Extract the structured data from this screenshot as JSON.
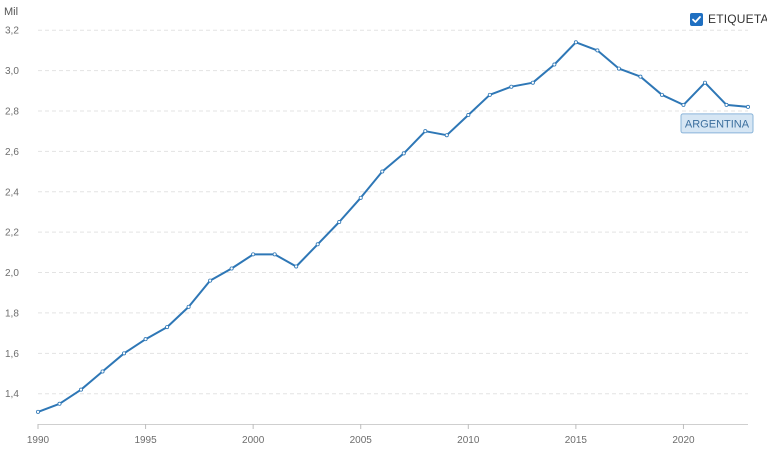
{
  "legend": {
    "label": "ETIQUETA",
    "checked": true
  },
  "chart_data": {
    "type": "line",
    "unit_label": "Mil",
    "x_ticks": [
      "1990",
      "1995",
      "2000",
      "2005",
      "2010",
      "2015",
      "2020"
    ],
    "y_ticks": [
      "1,4",
      "1,6",
      "1,8",
      "2,0",
      "2,2",
      "2,4",
      "2,6",
      "2,8",
      "3,0",
      "3,2"
    ],
    "xlim": [
      1990,
      2023
    ],
    "ylim": [
      1.25,
      3.3
    ],
    "grid": {
      "horizontal": true,
      "vertical": false
    },
    "series": [
      {
        "name": "ARGENTINA",
        "color": "#2e77b6",
        "x": [
          1990,
          1991,
          1992,
          1993,
          1994,
          1995,
          1996,
          1997,
          1998,
          1999,
          2000,
          2001,
          2002,
          2003,
          2004,
          2005,
          2006,
          2007,
          2008,
          2009,
          2010,
          2011,
          2012,
          2013,
          2014,
          2015,
          2016,
          2017,
          2018,
          2019,
          2020,
          2021,
          2022,
          2023
        ],
        "y": [
          1.31,
          1.35,
          1.42,
          1.51,
          1.6,
          1.67,
          1.73,
          1.83,
          1.96,
          2.02,
          2.09,
          2.09,
          2.03,
          2.14,
          2.25,
          2.37,
          2.5,
          2.59,
          2.7,
          2.68,
          2.78,
          2.88,
          2.92,
          2.94,
          3.03,
          3.14,
          3.1,
          3.01,
          2.97,
          2.88,
          2.83,
          2.94,
          2.83,
          2.82
        ]
      }
    ]
  }
}
